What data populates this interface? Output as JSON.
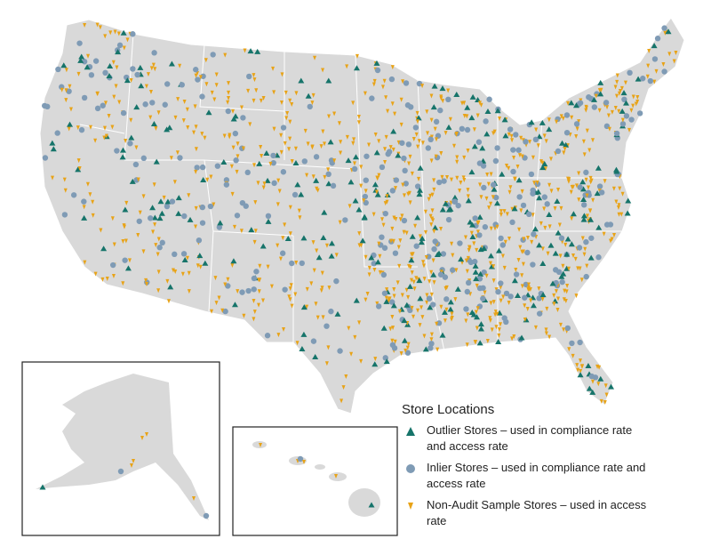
{
  "legend": {
    "title": "Store Locations",
    "items": [
      "Outlier Stores – used in compliance rate and access rate",
      "Inlier Stores – used in compliance rate and access rate",
      "Non-Audit Sample Stores – used in access rate"
    ]
  }
}
